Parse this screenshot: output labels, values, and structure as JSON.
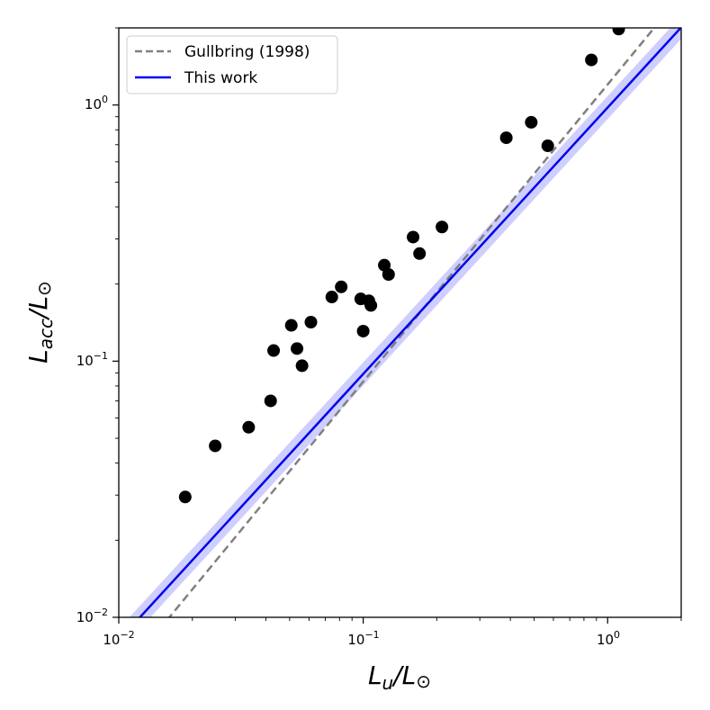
{
  "chart_data": {
    "type": "scatter",
    "x_scale": "log",
    "y_scale": "log",
    "xlim": [
      0.01,
      2.0
    ],
    "ylim": [
      0.01,
      2.0
    ],
    "xlabel": {
      "main": "L",
      "sub": "u",
      "rest": "/L",
      "odot": "⊙"
    },
    "ylabel": {
      "main": "L",
      "sub": "acc",
      "rest": "/L",
      "odot": "⊙"
    },
    "x_ticks": [
      {
        "value": 0.01,
        "base": "10",
        "exp": "−2"
      },
      {
        "value": 0.1,
        "base": "10",
        "exp": "−1"
      },
      {
        "value": 1,
        "base": "10",
        "exp": "0"
      }
    ],
    "y_ticks": [
      {
        "value": 0.01,
        "base": "10",
        "exp": "−2"
      },
      {
        "value": 0.1,
        "base": "10",
        "exp": "−1"
      },
      {
        "value": 1,
        "base": "10",
        "exp": "0"
      }
    ],
    "points": [
      {
        "x": 0.0187,
        "y": 0.0295
      },
      {
        "x": 0.0248,
        "y": 0.0467
      },
      {
        "x": 0.034,
        "y": 0.0552
      },
      {
        "x": 0.0418,
        "y": 0.07
      },
      {
        "x": 0.043,
        "y": 0.11
      },
      {
        "x": 0.0508,
        "y": 0.138
      },
      {
        "x": 0.0536,
        "y": 0.112
      },
      {
        "x": 0.0562,
        "y": 0.096
      },
      {
        "x": 0.0611,
        "y": 0.142
      },
      {
        "x": 0.0744,
        "y": 0.178
      },
      {
        "x": 0.0813,
        "y": 0.195
      },
      {
        "x": 0.0977,
        "y": 0.175
      },
      {
        "x": 0.1,
        "y": 0.131
      },
      {
        "x": 0.1055,
        "y": 0.172
      },
      {
        "x": 0.1075,
        "y": 0.165
      },
      {
        "x": 0.122,
        "y": 0.237
      },
      {
        "x": 0.127,
        "y": 0.218
      },
      {
        "x": 0.16,
        "y": 0.305
      },
      {
        "x": 0.17,
        "y": 0.263
      },
      {
        "x": 0.21,
        "y": 0.334
      },
      {
        "x": 0.385,
        "y": 0.745
      },
      {
        "x": 0.487,
        "y": 0.856
      },
      {
        "x": 0.569,
        "y": 0.693
      },
      {
        "x": 0.858,
        "y": 1.5
      },
      {
        "x": 1.11,
        "y": 1.98
      }
    ],
    "lines": [
      {
        "name": "Gullbring (1998)",
        "style": "dashed",
        "color": "#808080",
        "slope": 1.16,
        "intercept": 0.08
      },
      {
        "name": "This work",
        "style": "solid",
        "color": "#0000ee",
        "slope": 1.04,
        "intercept": -0.01,
        "band_halfwidth_log": 0.045,
        "band_color": "#a6a6ff"
      }
    ],
    "legend": {
      "location": "top-left",
      "entries": [
        "Gullbring (1998)",
        "This work"
      ]
    },
    "point_color": "#000000"
  }
}
